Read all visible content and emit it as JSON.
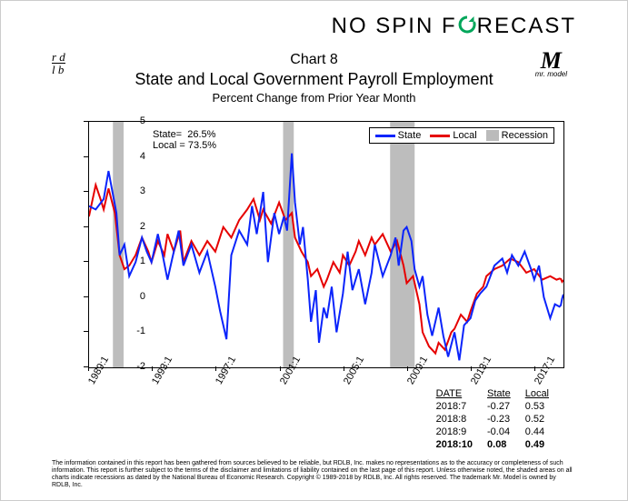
{
  "brand": {
    "pre": "NO SPIN F",
    "post": "RECAST",
    "o_color": "#00a65a"
  },
  "logo_left": {
    "line1": "r d",
    "line2": "l b"
  },
  "logo_right": {
    "big": "M",
    "sub": "mr. model"
  },
  "titles": {
    "chartno": "Chart 8",
    "main": "State and Local Government Payroll Employment",
    "sub": "Percent Change from Prior Year Month"
  },
  "annotation": {
    "line1": "State=  26.5%",
    "line2": "Local = 73.5%"
  },
  "legend": {
    "s1": {
      "label": "State",
      "color": "#0b24fb"
    },
    "s2": {
      "label": "Local",
      "color": "#e60000"
    },
    "s3": {
      "label": "Recession"
    }
  },
  "chart": {
    "ylim": [
      -2,
      5
    ],
    "yticks": [
      -2,
      -1,
      0,
      1,
      2,
      3,
      4,
      5
    ],
    "x_start": 1989.083,
    "x_end": 2018.833,
    "xticks": [
      1989.083,
      1993.083,
      1997.083,
      2001.083,
      2005.083,
      2009.083,
      2013.083,
      2017.083
    ],
    "xlabels": [
      "1989:1",
      "1993:1",
      "1997:1",
      "2001:1",
      "2005:1",
      "2009:1",
      "2013:1",
      "2017:1"
    ],
    "recessions": [
      [
        1990.58,
        1991.25
      ],
      [
        2001.25,
        2001.92
      ],
      [
        2007.96,
        2009.5
      ]
    ],
    "recession_color": "#bdbdbd",
    "state_color": "#0b24fb",
    "local_color": "#e60000",
    "line_width": 2,
    "state": [
      [
        1989.08,
        2.6
      ],
      [
        1989.5,
        2.5
      ],
      [
        1990,
        2.8
      ],
      [
        1990.3,
        3.6
      ],
      [
        1990.8,
        2.4
      ],
      [
        1991,
        1.2
      ],
      [
        1991.3,
        1.5
      ],
      [
        1991.6,
        0.6
      ],
      [
        1992,
        1.0
      ],
      [
        1992.4,
        1.7
      ],
      [
        1992.7,
        1.3
      ],
      [
        1993,
        1.0
      ],
      [
        1993.4,
        1.8
      ],
      [
        1993.7,
        1.2
      ],
      [
        1994,
        0.5
      ],
      [
        1994.3,
        1.1
      ],
      [
        1994.7,
        1.9
      ],
      [
        1995,
        0.9
      ],
      [
        1995.5,
        1.5
      ],
      [
        1996,
        0.7
      ],
      [
        1996.5,
        1.3
      ],
      [
        1997,
        0.3
      ],
      [
        1997.3,
        -0.4
      ],
      [
        1997.7,
        -1.2
      ],
      [
        1998,
        1.2
      ],
      [
        1998.5,
        1.9
      ],
      [
        1999,
        1.5
      ],
      [
        1999.3,
        2.6
      ],
      [
        1999.6,
        1.8
      ],
      [
        2000,
        3.0
      ],
      [
        2000.3,
        1.0
      ],
      [
        2000.7,
        2.4
      ],
      [
        2001,
        1.8
      ],
      [
        2001.3,
        2.3
      ],
      [
        2001.5,
        1.9
      ],
      [
        2001.8,
        4.1
      ],
      [
        2002,
        2.7
      ],
      [
        2002.3,
        1.5
      ],
      [
        2002.5,
        2.0
      ],
      [
        2002.8,
        0.5
      ],
      [
        2003,
        -0.7
      ],
      [
        2003.3,
        0.2
      ],
      [
        2003.5,
        -1.3
      ],
      [
        2003.8,
        -0.3
      ],
      [
        2004,
        -0.6
      ],
      [
        2004.3,
        0.3
      ],
      [
        2004.6,
        -1.0
      ],
      [
        2005,
        0.1
      ],
      [
        2005.3,
        1.3
      ],
      [
        2005.6,
        0.2
      ],
      [
        2006,
        0.8
      ],
      [
        2006.4,
        -0.2
      ],
      [
        2006.8,
        0.7
      ],
      [
        2007,
        1.5
      ],
      [
        2007.5,
        0.6
      ],
      [
        2008,
        1.2
      ],
      [
        2008.3,
        1.7
      ],
      [
        2008.5,
        0.9
      ],
      [
        2008.8,
        1.9
      ],
      [
        2009,
        2.0
      ],
      [
        2009.3,
        1.6
      ],
      [
        2009.5,
        0.8
      ],
      [
        2009.8,
        0.3
      ],
      [
        2010,
        0.6
      ],
      [
        2010.3,
        -0.5
      ],
      [
        2010.6,
        -1.1
      ],
      [
        2011,
        -0.3
      ],
      [
        2011.3,
        -1.1
      ],
      [
        2011.6,
        -1.7
      ],
      [
        2012,
        -1.0
      ],
      [
        2012.3,
        -1.8
      ],
      [
        2012.6,
        -0.8
      ],
      [
        2013,
        -0.6
      ],
      [
        2013.3,
        -0.1
      ],
      [
        2013.6,
        0.1
      ],
      [
        2014,
        0.3
      ],
      [
        2014.5,
        0.9
      ],
      [
        2015,
        1.1
      ],
      [
        2015.3,
        0.7
      ],
      [
        2015.6,
        1.2
      ],
      [
        2016,
        0.9
      ],
      [
        2016.4,
        1.3
      ],
      [
        2016.8,
        0.8
      ],
      [
        2017,
        0.5
      ],
      [
        2017.3,
        0.9
      ],
      [
        2017.6,
        0.0
      ],
      [
        2018,
        -0.6
      ],
      [
        2018.3,
        -0.2
      ],
      [
        2018.58,
        -0.27
      ],
      [
        2018.67,
        -0.23
      ],
      [
        2018.75,
        -0.04
      ],
      [
        2018.83,
        0.08
      ]
    ],
    "local": [
      [
        1989.08,
        2.3
      ],
      [
        1989.5,
        3.2
      ],
      [
        1989.8,
        2.8
      ],
      [
        1990,
        2.5
      ],
      [
        1990.3,
        3.1
      ],
      [
        1990.7,
        2.4
      ],
      [
        1991,
        1.2
      ],
      [
        1991.3,
        0.8
      ],
      [
        1991.6,
        0.9
      ],
      [
        1992,
        1.2
      ],
      [
        1992.4,
        1.7
      ],
      [
        1992.8,
        1.3
      ],
      [
        1993,
        1.0
      ],
      [
        1993.4,
        1.6
      ],
      [
        1993.8,
        1.2
      ],
      [
        1994,
        1.8
      ],
      [
        1994.4,
        1.3
      ],
      [
        1994.8,
        1.9
      ],
      [
        1995,
        1.0
      ],
      [
        1995.5,
        1.6
      ],
      [
        1996,
        1.2
      ],
      [
        1996.5,
        1.6
      ],
      [
        1997,
        1.3
      ],
      [
        1997.5,
        2.0
      ],
      [
        1998,
        1.7
      ],
      [
        1998.5,
        2.2
      ],
      [
        1999,
        2.5
      ],
      [
        1999.4,
        2.8
      ],
      [
        1999.8,
        2.2
      ],
      [
        2000,
        2.5
      ],
      [
        2000.5,
        2.1
      ],
      [
        2001,
        2.7
      ],
      [
        2001.4,
        2.2
      ],
      [
        2001.8,
        2.4
      ],
      [
        2002,
        1.7
      ],
      [
        2002.4,
        1.3
      ],
      [
        2002.8,
        1.0
      ],
      [
        2003,
        0.6
      ],
      [
        2003.4,
        0.8
      ],
      [
        2003.8,
        0.3
      ],
      [
        2004,
        0.5
      ],
      [
        2004.4,
        1.0
      ],
      [
        2004.8,
        0.7
      ],
      [
        2005,
        1.2
      ],
      [
        2005.4,
        0.9
      ],
      [
        2005.8,
        1.3
      ],
      [
        2006,
        1.6
      ],
      [
        2006.4,
        1.2
      ],
      [
        2006.8,
        1.7
      ],
      [
        2007,
        1.5
      ],
      [
        2007.5,
        1.8
      ],
      [
        2008,
        1.3
      ],
      [
        2008.4,
        1.6
      ],
      [
        2008.8,
        0.9
      ],
      [
        2009,
        0.4
      ],
      [
        2009.4,
        0.6
      ],
      [
        2009.8,
        -0.2
      ],
      [
        2010,
        -1.0
      ],
      [
        2010.4,
        -1.4
      ],
      [
        2010.8,
        -1.6
      ],
      [
        2011,
        -1.3
      ],
      [
        2011.4,
        -1.5
      ],
      [
        2011.8,
        -1.0
      ],
      [
        2012,
        -0.9
      ],
      [
        2012.4,
        -0.5
      ],
      [
        2012.8,
        -0.7
      ],
      [
        2013,
        -0.4
      ],
      [
        2013.4,
        0.1
      ],
      [
        2013.8,
        0.3
      ],
      [
        2014,
        0.6
      ],
      [
        2014.5,
        0.8
      ],
      [
        2015,
        0.9
      ],
      [
        2015.5,
        1.1
      ],
      [
        2016,
        1.0
      ],
      [
        2016.5,
        0.7
      ],
      [
        2017,
        0.8
      ],
      [
        2017.5,
        0.5
      ],
      [
        2018,
        0.6
      ],
      [
        2018.4,
        0.5
      ],
      [
        2018.58,
        0.53
      ],
      [
        2018.67,
        0.52
      ],
      [
        2018.75,
        0.44
      ],
      [
        2018.83,
        0.49
      ]
    ]
  },
  "table": {
    "headers": [
      "DATE",
      "State",
      "Local"
    ],
    "rows": [
      [
        "2018:7",
        "-0.27",
        "0.53"
      ],
      [
        "2018:8",
        "-0.23",
        "0.52"
      ],
      [
        "2018:9",
        "-0.04",
        "0.44"
      ]
    ],
    "bold_row": [
      "2018:10",
      "0.08",
      "0.49"
    ]
  },
  "disclaimer": "The information contained in this report has been gathered from sources believed to be reliable, but RDLB, Inc. makes no representations as to the accuracy or completeness of such information. This report is further subject to the terms of the disclaimer and limitations of liability contained on the last page of this report. Unless otherwise noted, the shaded areas on all charts indicate recessions as dated by the National Bureau of Economic Research. Copyright © 1989-2018 by RDLB, Inc. All rights reserved. The trademark Mr. Model is owned by RDLB, Inc."
}
